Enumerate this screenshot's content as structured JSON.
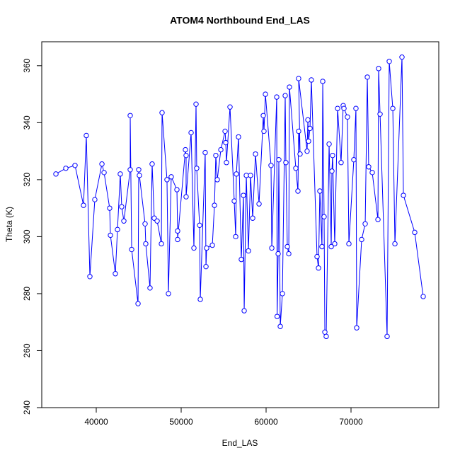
{
  "chart_data": {
    "type": "line",
    "title": "ATOM4 Northbound End_LAS",
    "x_label": "End_LAS",
    "y_label": "Theta (K)",
    "color": "#0000ff",
    "markers": true,
    "xlim": [
      33583,
      80333
    ],
    "xticks": [
      40000,
      50000,
      60000,
      70000
    ],
    "ylim": [
      240,
      368.4
    ],
    "yticks": [
      240,
      260,
      280,
      300,
      320,
      340,
      360
    ],
    "x": [
      35250,
      36420,
      37500,
      38500,
      38830,
      39250,
      39830,
      40670,
      40920,
      41580,
      41670,
      42250,
      42500,
      42830,
      43000,
      43250,
      44000,
      44000,
      44170,
      44920,
      45000,
      45080,
      45750,
      45830,
      46330,
      46580,
      46830,
      47170,
      47670,
      47750,
      48330,
      48500,
      48830,
      49500,
      49580,
      49580,
      50500,
      50580,
      50580,
      51170,
      51500,
      51750,
      51830,
      52170,
      52250,
      52830,
      52920,
      53000,
      53670,
      53920,
      54080,
      54250,
      54670,
      55170,
      55250,
      55330,
      55750,
      56250,
      56420,
      56500,
      56750,
      57080,
      57330,
      57420,
      57670,
      57920,
      58170,
      58420,
      58750,
      59170,
      59670,
      59750,
      59920,
      60580,
      60670,
      61250,
      61300,
      61420,
      61500,
      61670,
      61920,
      62250,
      62330,
      62500,
      62670,
      62750,
      63500,
      63750,
      63830,
      64000,
      63830,
      64830,
      64920,
      65000,
      65170,
      65330,
      66000,
      66170,
      66330,
      66580,
      66670,
      66830,
      66920,
      67080,
      67420,
      67670,
      67750,
      67830,
      68080,
      68420,
      68830,
      69080,
      69170,
      69580,
      69750,
      70330,
      70580,
      70670,
      71250,
      71670,
      71920,
      72080,
      72500,
      73170,
      73250,
      73420,
      74250,
      74500,
      74920,
      75170,
      76000,
      76170,
      77500,
      78500
    ],
    "values": [
      322,
      324,
      325,
      311,
      335.5,
      286,
      313,
      325.5,
      322.5,
      310,
      300.5,
      287,
      302.5,
      322,
      310.5,
      305.5,
      323.5,
      342.5,
      295.5,
      276.5,
      323.5,
      321.5,
      304.5,
      297.5,
      282,
      325.5,
      306.5,
      305.5,
      297.5,
      343.5,
      320,
      280,
      321,
      316.5,
      302,
      299,
      330.5,
      328.5,
      314,
      336.5,
      296,
      346.5,
      324,
      304,
      278,
      329.5,
      289.5,
      296,
      297,
      311,
      328.5,
      320,
      330.5,
      337,
      333,
      326,
      345.5,
      312.5,
      300,
      322,
      335,
      292,
      314.5,
      274,
      321.5,
      295,
      321.5,
      306.5,
      329,
      311.5,
      342.5,
      337,
      350,
      325,
      296,
      349,
      272,
      294,
      327,
      268.5,
      280,
      349.5,
      326,
      296.5,
      294,
      352.5,
      324,
      316,
      337,
      329,
      355.5,
      330,
      341,
      333.5,
      338,
      355,
      293,
      289,
      316,
      296.5,
      354.5,
      307,
      266.5,
      265,
      332.5,
      296.5,
      323,
      328.5,
      297.5,
      345,
      326,
      346,
      345,
      342,
      297.5,
      327,
      345,
      268,
      299,
      304.5,
      356,
      324.5,
      322.5,
      306,
      359,
      343,
      265,
      361.5,
      345,
      297.5,
      363,
      314.5,
      301.5,
      279
    ]
  }
}
